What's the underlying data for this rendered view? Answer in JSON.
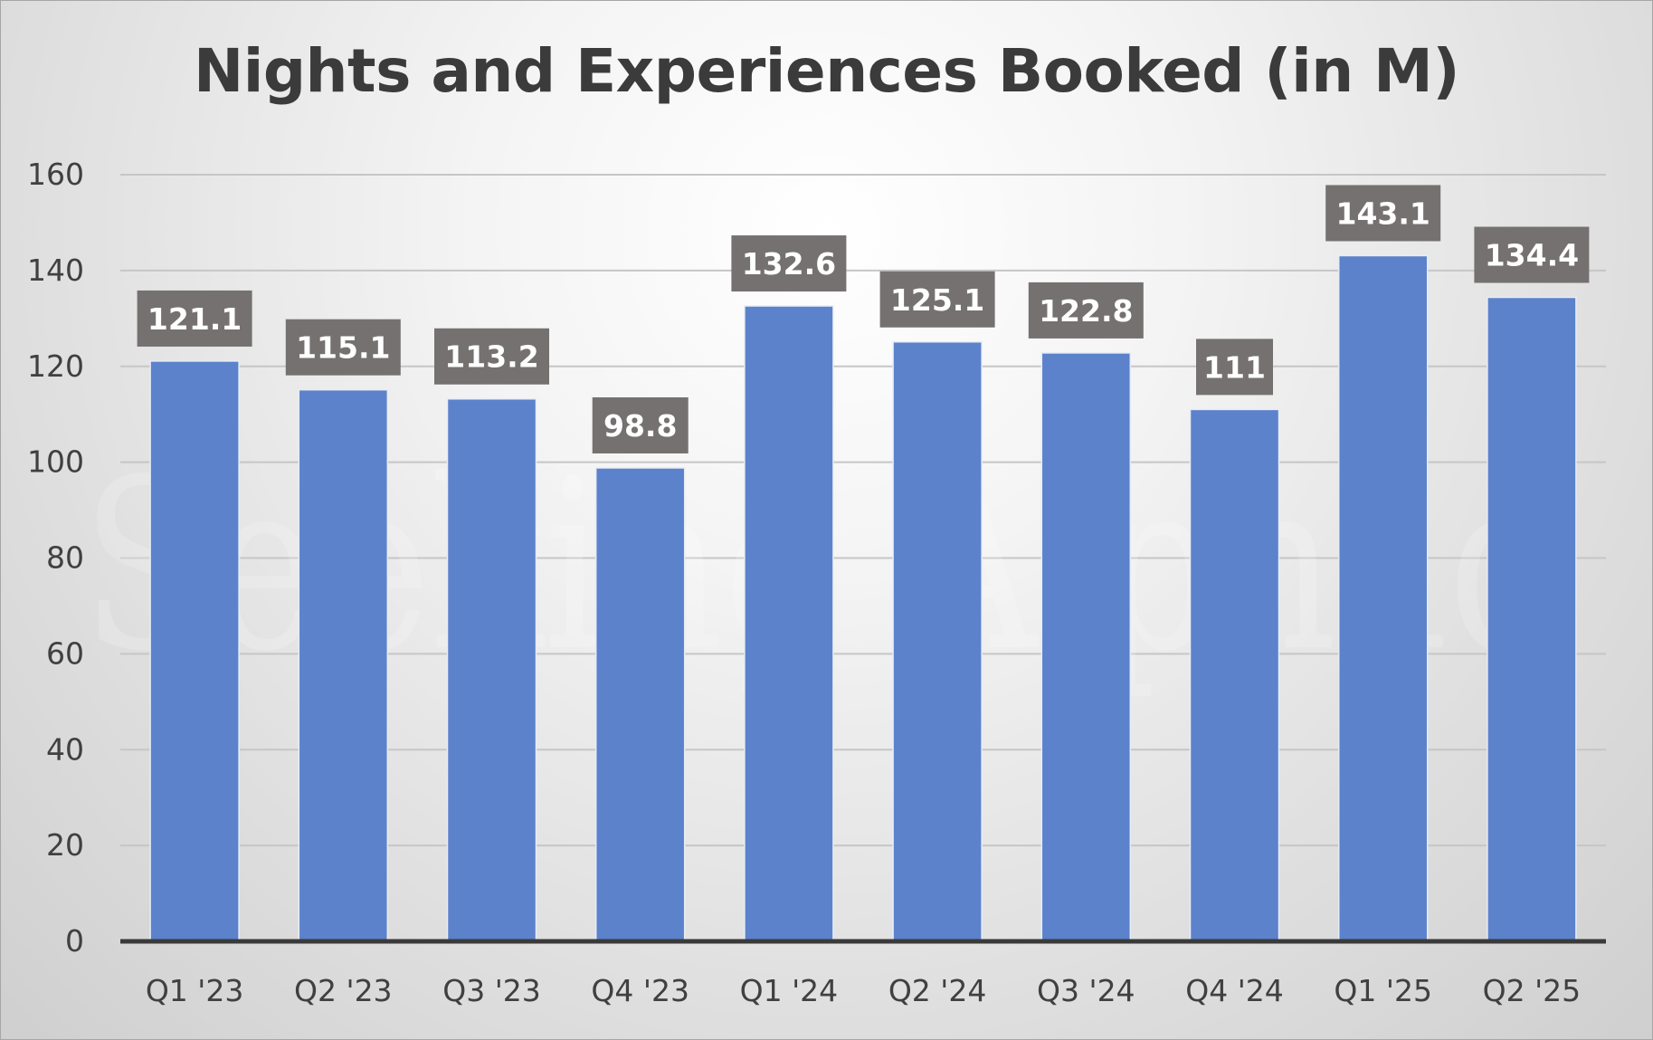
{
  "chart_data": {
    "type": "bar",
    "title": "Nights and Experiences Booked (in M)",
    "categories": [
      "Q1 '23",
      "Q2 '23",
      "Q3 '23",
      "Q4 '23",
      "Q1 '24",
      "Q2 '24",
      "Q3 '24",
      "Q4 '24",
      "Q1 '25",
      "Q2 '25"
    ],
    "values": [
      121.1,
      115.1,
      113.2,
      98.8,
      132.6,
      125.1,
      122.8,
      111,
      143.1,
      134.4
    ],
    "data_labels": [
      "121.1",
      "115.1",
      "113.2",
      "98.8",
      "132.6",
      "125.1",
      "122.8",
      "111",
      "143.1",
      "134.4"
    ],
    "xlabel": "",
    "ylabel": "",
    "ylim": [
      0,
      160
    ],
    "yticks": [
      0,
      20,
      40,
      60,
      80,
      100,
      120,
      140,
      160
    ],
    "grid": true,
    "legend": "none",
    "colors": {
      "bar": "#5b82cb",
      "data_label_bg": "#757171",
      "gridline": "#c6c6c6",
      "axis": "#3a3a3a"
    }
  },
  "watermark": "Seeking Alphaα"
}
